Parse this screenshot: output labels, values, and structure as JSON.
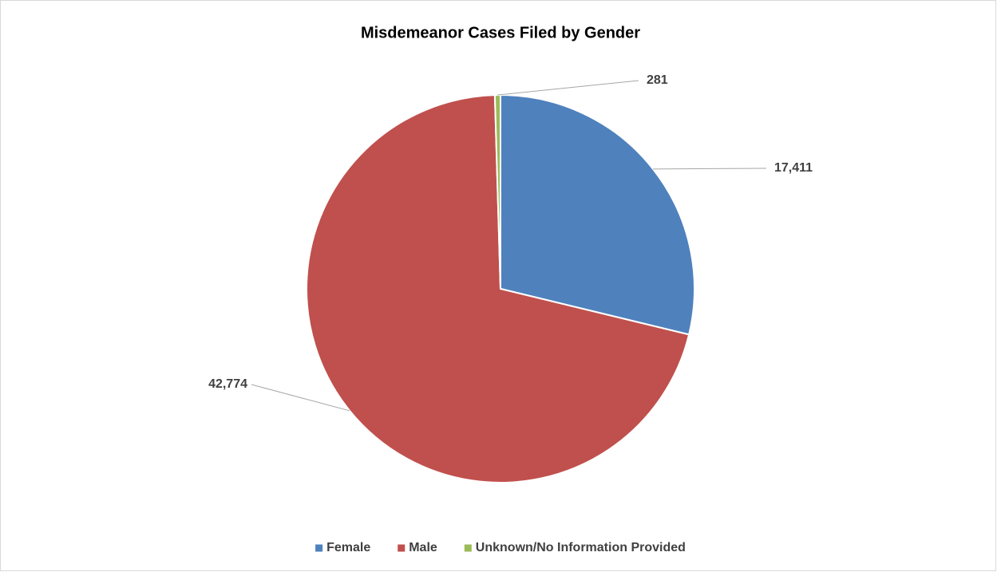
{
  "chart_data": {
    "type": "pie",
    "title": "Misdemeanor Cases Filed by Gender",
    "categories": [
      "Female",
      "Male",
      "Unknown/No Information Provided"
    ],
    "values": [
      17411,
      42774,
      281
    ],
    "value_labels": [
      "17,411",
      "42,774",
      "281"
    ],
    "colors": [
      "#4f81bd",
      "#c0504d",
      "#9bbb59"
    ],
    "legend": "bottom"
  }
}
